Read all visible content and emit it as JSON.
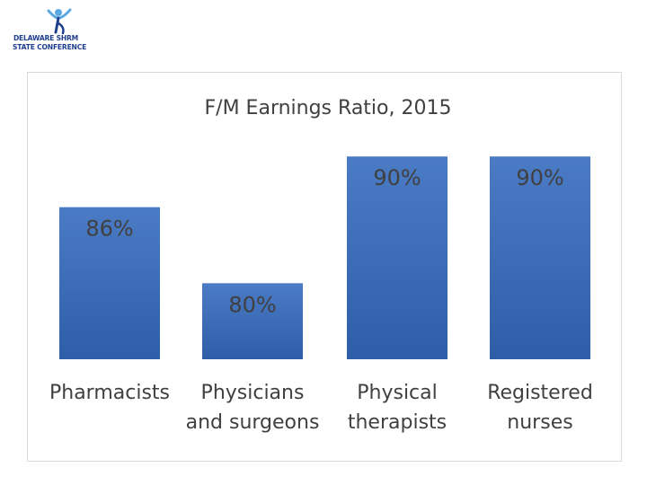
{
  "logo": {
    "line1_left": "DELAWARE",
    "line1_right": "SHRM",
    "line2": "STATE CONFERENCE"
  },
  "colors": {
    "bar_top": "#4a7bc4",
    "bar_bottom": "#2e5ea8",
    "text": "#404040",
    "logo": "#1f3f8f",
    "logo_accent": "#5aa9e0"
  },
  "chart_data": {
    "type": "bar",
    "title": "F/M Earnings Ratio, 2015",
    "categories": [
      "Pharmacists",
      "Physicians and surgeons",
      "Physical therapists",
      "Registered nurses"
    ],
    "category_lines": [
      [
        "Pharmacists"
      ],
      [
        "Physicians",
        "and surgeons"
      ],
      [
        "Physical",
        "therapists"
      ],
      [
        "Registered",
        "nurses"
      ]
    ],
    "values": [
      0.86,
      0.8,
      0.9,
      0.9
    ],
    "data_labels": [
      "86%",
      "80%",
      "90%",
      "90%"
    ],
    "xlabel": "",
    "ylabel": "",
    "ylim": [
      0.74,
      0.92
    ],
    "grid": false,
    "legend": "none"
  }
}
